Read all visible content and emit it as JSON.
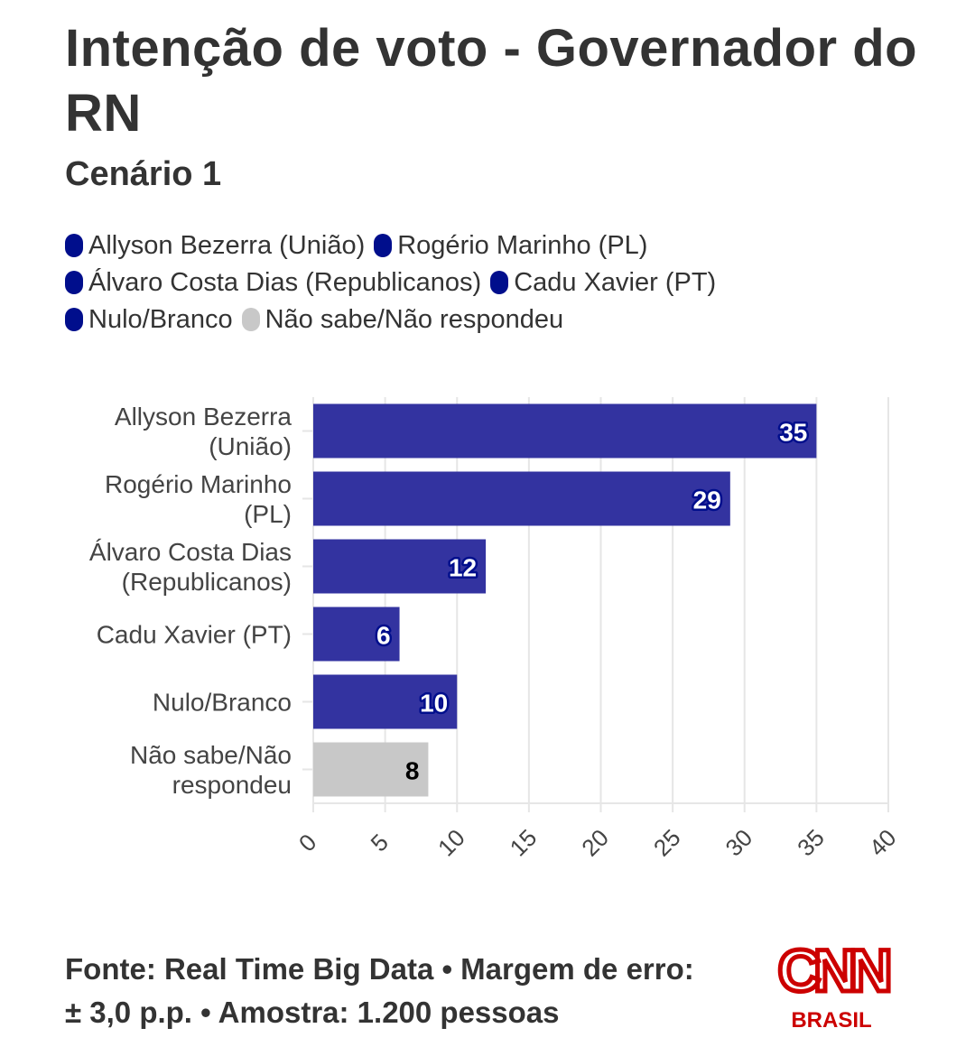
{
  "header": {
    "title": "Intenção de voto - Governador do RN",
    "subtitle": "Cenário 1"
  },
  "legend": [
    {
      "label": "Allyson Bezerra (União)",
      "color": "#000E8C"
    },
    {
      "label": "Rogério Marinho (PL)",
      "color": "#000E8C"
    },
    {
      "label": "Álvaro Costa Dias (Republicanos)",
      "color": "#000E8C"
    },
    {
      "label": "Cadu Xavier (PT)",
      "color": "#000E8C"
    },
    {
      "label": "Nulo/Branco",
      "color": "#000E8C"
    },
    {
      "label": "Não sabe/Não respondeu",
      "color": "#C8C8C8"
    }
  ],
  "chart_data": {
    "type": "bar",
    "orientation": "horizontal",
    "title": "Intenção de voto - Governador do RN",
    "subtitle": "Cenário 1",
    "categories": [
      [
        "Allyson Bezerra",
        "(União)"
      ],
      [
        "Rogério Marinho",
        "(PL)"
      ],
      [
        "Álvaro Costa Dias",
        "(Republicanos)"
      ],
      [
        "Cadu Xavier (PT)"
      ],
      [
        "Nulo/Branco"
      ],
      [
        "Não sabe/Não",
        "respondeu"
      ]
    ],
    "values": [
      35,
      29,
      12,
      6,
      10,
      8
    ],
    "colors": [
      "#3333A0",
      "#3333A0",
      "#3333A0",
      "#3333A0",
      "#3333A0",
      "#C8C8C8"
    ],
    "label_colors": [
      "#FFFFFF",
      "#FFFFFF",
      "#FFFFFF",
      "#FFFFFF",
      "#FFFFFF",
      "#000000"
    ],
    "label_outline_colors": [
      "#000E8C",
      "#000E8C",
      "#000E8C",
      "#000E8C",
      "#000E8C",
      "#C8C8C8"
    ],
    "xlim": [
      0,
      40
    ],
    "xticks": [
      0,
      5,
      10,
      15,
      20,
      25,
      30,
      35,
      40
    ],
    "xlabel": "",
    "ylabel": "",
    "grid": true,
    "legend_position": "top"
  },
  "footer": {
    "source": "Fonte: Real Time Big Data • Margem de erro: ± 3,0 p.p. • Amostra: 1.200 pessoas"
  },
  "logo": {
    "brand": "CNN",
    "sub": "BRASIL",
    "color": "#CC0000"
  }
}
